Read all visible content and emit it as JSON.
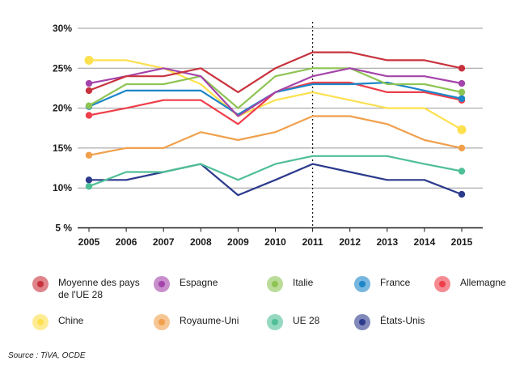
{
  "chart_data": {
    "type": "line",
    "title": "",
    "xlabel": "",
    "ylabel": "",
    "x": [
      2005,
      2006,
      2007,
      2008,
      2009,
      2010,
      2011,
      2012,
      2013,
      2014,
      2015
    ],
    "x_tick_labels": [
      "2005",
      "2006",
      "2007",
      "2008",
      "2009",
      "2010",
      "2011",
      "2012",
      "2013",
      "2014",
      "2015"
    ],
    "ylim": [
      5,
      30
    ],
    "y_ticks": [
      5,
      10,
      15,
      20,
      25,
      30
    ],
    "y_tick_labels": [
      "5 %",
      "10%",
      "15%",
      "20%",
      "25%",
      "30%"
    ],
    "grid": true,
    "reference_line_x": 2011,
    "legend_placement": "bottom",
    "series": [
      {
        "name": "Moyenne des pays\nde l'UE 28",
        "color": "#c8323c",
        "values": [
          22.2,
          24,
          24,
          25,
          22,
          25,
          27,
          27,
          26,
          26,
          25
        ]
      },
      {
        "name": "Espagne",
        "color": "#a444aa",
        "values": [
          23.1,
          24,
          25,
          24,
          19,
          22,
          24,
          25,
          24,
          24,
          23.1
        ]
      },
      {
        "name": "Italie",
        "color": "#8ec454",
        "values": [
          20.3,
          23,
          23,
          24,
          20,
          24,
          25,
          25,
          23,
          23,
          22
        ]
      },
      {
        "name": "France",
        "color": "#1c86c8",
        "values": [
          20.2,
          22.2,
          22.2,
          22.2,
          19.2,
          22,
          23,
          23,
          23.2,
          22.2,
          21.2
        ]
      },
      {
        "name": "Allemagne",
        "color": "#ee3e4a",
        "values": [
          19.1,
          20,
          21,
          21,
          18,
          22,
          23.2,
          23.2,
          22,
          22,
          21
        ]
      },
      {
        "name": "Chine",
        "color": "#fde04e",
        "values": [
          26,
          26,
          25,
          23,
          19,
          21,
          22,
          21,
          20,
          20,
          17.3
        ]
      },
      {
        "name": "Royaume-Uni",
        "color": "#f0a04c",
        "values": [
          14.1,
          15,
          15,
          17,
          16,
          17,
          19,
          19,
          18,
          16,
          15
        ]
      },
      {
        "name": "UE 28",
        "color": "#4fbf96",
        "values": [
          10.2,
          12,
          12,
          13,
          11,
          13,
          14,
          14,
          14,
          13,
          12.1
        ]
      },
      {
        "name": "États-Unis",
        "color": "#2b3a8c",
        "values": [
          11,
          11,
          12,
          13,
          9.1,
          11,
          13,
          12,
          11,
          11,
          9.2
        ]
      }
    ]
  },
  "source": "Source : TiVA, OCDE"
}
